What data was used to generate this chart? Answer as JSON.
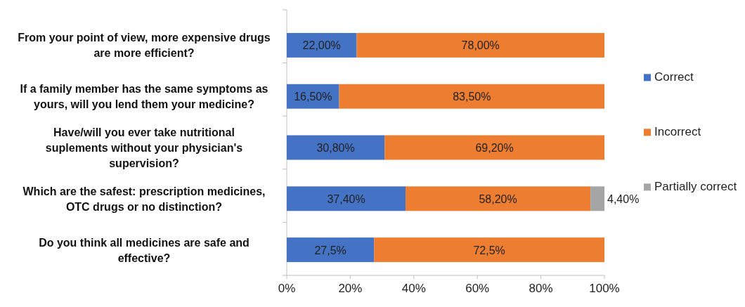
{
  "chart_data": {
    "type": "bar",
    "orientation": "horizontal",
    "stacked": true,
    "categories": [
      "From your point of view, more expensive drugs are more efficient?",
      "If a family member has the same symptoms as yours, will you lend them your medicine?",
      "Have/will you ever take nutritional suplements without your physician's supervision?",
      "Which are the safest: prescription medicines, OTC drugs or no distinction?",
      "Do you think all medicines are safe and effective?"
    ],
    "series": [
      {
        "name": "Correct",
        "color": "#4472c4",
        "values": [
          22,
          16.5,
          30.8,
          37.4,
          27.5
        ],
        "value_labels": [
          "22,00%",
          "16,50%",
          "30,80%",
          "37,40%",
          "27,5%"
        ]
      },
      {
        "name": "Incorrect",
        "color": "#ed7d31",
        "values": [
          78,
          83.5,
          69.2,
          58.2,
          72.5
        ],
        "value_labels": [
          "78,00%",
          "83,50%",
          "69,20%",
          "58,20%",
          "72,5%"
        ]
      },
      {
        "name": "Partially correct",
        "color": "#a5a5a5",
        "values": [
          null,
          null,
          null,
          4.4,
          null
        ],
        "value_labels": [
          null,
          null,
          null,
          "4,40%",
          null
        ]
      }
    ],
    "xlim": [
      0,
      100
    ],
    "xticks": [
      {
        "value": 0,
        "label": "0%"
      },
      {
        "value": 20,
        "label": "20%"
      },
      {
        "value": 40,
        "label": "40%"
      },
      {
        "value": 60,
        "label": "60%"
      },
      {
        "value": 80,
        "label": "80%"
      },
      {
        "value": 100,
        "label": "100%"
      }
    ],
    "legend": "right"
  }
}
